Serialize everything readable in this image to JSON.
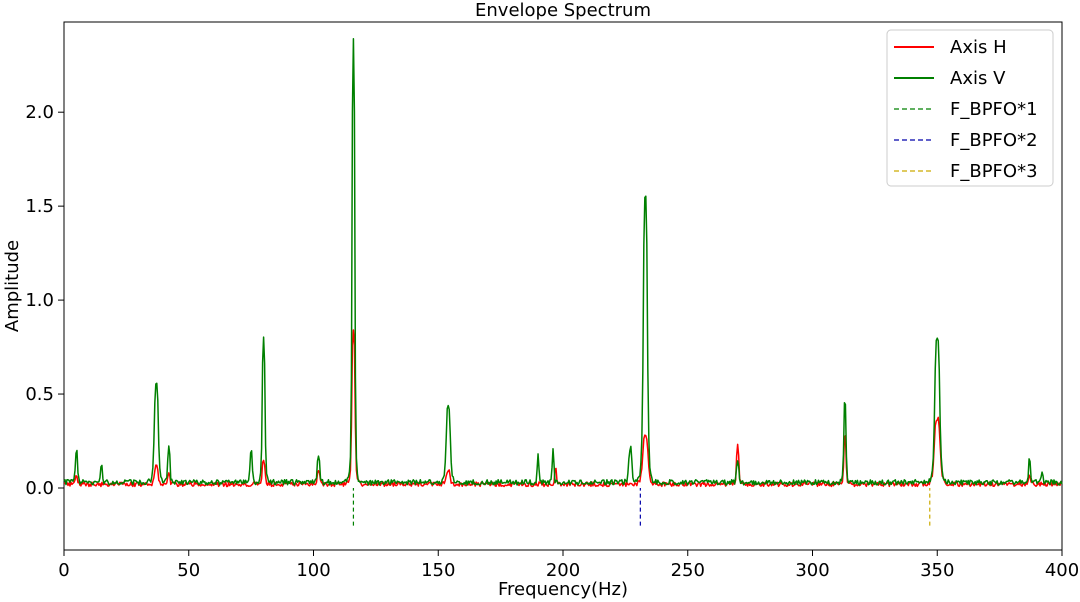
{
  "chart_data": {
    "type": "line",
    "title": "Envelope Spectrum",
    "xlabel": "Frequency(Hz)",
    "ylabel": "Amplitude",
    "xlim": [
      0,
      400
    ],
    "ylim": [
      -0.33,
      2.48
    ],
    "xticks": [
      0,
      50,
      100,
      150,
      200,
      250,
      300,
      350,
      400
    ],
    "yticks": [
      0.0,
      0.5,
      1.0,
      1.5,
      2.0
    ],
    "xtick_labels": [
      "0",
      "50",
      "100",
      "150",
      "200",
      "250",
      "300",
      "350",
      "400"
    ],
    "ytick_labels": [
      "0.0",
      "0.5",
      "1.0",
      "1.5",
      "2.0"
    ],
    "grid": false,
    "legend_position": "top-right",
    "colors": {
      "axis_h": "#ff0000",
      "axis_v": "#008000",
      "bpfo1": "#008000",
      "bpfo2": "#0000aa",
      "bpfo3": "#ccaa00"
    },
    "series": [
      {
        "name": "Axis H",
        "color": "#ff0000",
        "baseline": 0.02,
        "noise": 0.012,
        "peaks": [
          {
            "x": 5,
            "y": 0.05,
            "w": 0.5
          },
          {
            "x": 37,
            "y": 0.1,
            "w": 0.8
          },
          {
            "x": 42,
            "y": 0.06,
            "w": 0.5
          },
          {
            "x": 80,
            "y": 0.13,
            "w": 0.6
          },
          {
            "x": 102,
            "y": 0.06,
            "w": 0.6
          },
          {
            "x": 116,
            "y": 0.81,
            "w": 0.7
          },
          {
            "x": 154,
            "y": 0.07,
            "w": 0.8
          },
          {
            "x": 197,
            "y": 0.08,
            "w": 0.4
          },
          {
            "x": 233,
            "y": 0.26,
            "w": 1.2
          },
          {
            "x": 270,
            "y": 0.21,
            "w": 0.5
          },
          {
            "x": 313,
            "y": 0.26,
            "w": 0.5
          },
          {
            "x": 350,
            "y": 0.35,
            "w": 1.3
          },
          {
            "x": 387,
            "y": 0.04,
            "w": 0.5
          }
        ]
      },
      {
        "name": "Axis V",
        "color": "#008000",
        "baseline": 0.03,
        "noise": 0.014,
        "peaks": [
          {
            "x": 5,
            "y": 0.17,
            "w": 0.5
          },
          {
            "x": 15,
            "y": 0.09,
            "w": 0.4
          },
          {
            "x": 37,
            "y": 0.52,
            "w": 0.9
          },
          {
            "x": 42,
            "y": 0.19,
            "w": 0.5
          },
          {
            "x": 75,
            "y": 0.17,
            "w": 0.5
          },
          {
            "x": 80,
            "y": 0.76,
            "w": 0.6
          },
          {
            "x": 102,
            "y": 0.14,
            "w": 0.6
          },
          {
            "x": 116,
            "y": 2.35,
            "w": 0.6
          },
          {
            "x": 154,
            "y": 0.4,
            "w": 0.9
          },
          {
            "x": 190,
            "y": 0.16,
            "w": 0.4
          },
          {
            "x": 196,
            "y": 0.18,
            "w": 0.4
          },
          {
            "x": 227,
            "y": 0.18,
            "w": 0.7
          },
          {
            "x": 233,
            "y": 1.52,
            "w": 0.9
          },
          {
            "x": 270,
            "y": 0.12,
            "w": 0.5
          },
          {
            "x": 313,
            "y": 0.43,
            "w": 0.5
          },
          {
            "x": 350,
            "y": 0.76,
            "w": 1.1
          },
          {
            "x": 387,
            "y": 0.12,
            "w": 0.5
          },
          {
            "x": 392,
            "y": 0.06,
            "w": 0.4
          }
        ]
      }
    ],
    "reference_lines": [
      {
        "name": "F_BPFO*1",
        "x": 116,
        "y_range": [
          -0.2,
          0.0
        ],
        "color": "#008000",
        "style": "dashed"
      },
      {
        "name": "F_BPFO*2",
        "x": 231,
        "y_range": [
          -0.2,
          0.0
        ],
        "color": "#0000aa",
        "style": "dashed"
      },
      {
        "name": "F_BPFO*3",
        "x": 347,
        "y_range": [
          -0.2,
          0.0
        ],
        "color": "#ccaa00",
        "style": "dashed"
      }
    ],
    "legend": [
      {
        "label": "Axis H",
        "style": "solid",
        "color": "#ff0000"
      },
      {
        "label": "Axis V",
        "style": "solid",
        "color": "#008000"
      },
      {
        "label": "F_BPFO*1",
        "style": "dashed",
        "color": "#008000"
      },
      {
        "label": "F_BPFO*2",
        "style": "dashed",
        "color": "#0000aa"
      },
      {
        "label": "F_BPFO*3",
        "style": "dashed",
        "color": "#ccaa00"
      }
    ]
  }
}
